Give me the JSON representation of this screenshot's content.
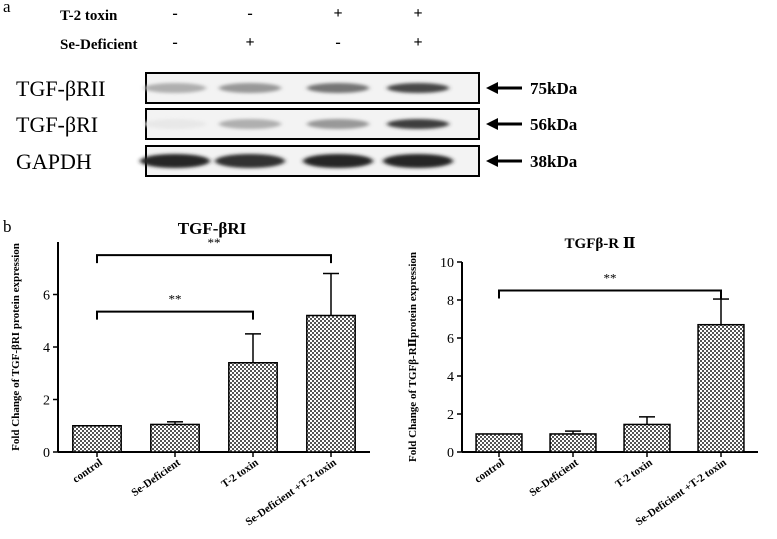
{
  "panel_a": {
    "letter": "a",
    "treatment_rows": [
      {
        "label": "T-2 toxin",
        "signs": [
          "-",
          "-",
          "+",
          "+"
        ]
      },
      {
        "label": "Se-Deficient",
        "signs": [
          "-",
          "+",
          "-",
          "+"
        ]
      }
    ],
    "blots": [
      {
        "name": "TGF-βRII",
        "size": "75kDa",
        "intensity": [
          0.35,
          0.45,
          0.6,
          0.8
        ]
      },
      {
        "name": "TGF-βRI",
        "size": "56kDa",
        "intensity": [
          0.1,
          0.35,
          0.45,
          0.85
        ]
      },
      {
        "name": "GAPDH",
        "size": "38kDa",
        "intensity": [
          0.95,
          0.9,
          0.95,
          0.95
        ]
      }
    ]
  },
  "panel_b": {
    "letter": "b"
  },
  "chart_data": [
    {
      "type": "bar",
      "title": "TGF-βRI",
      "ylabel": "Fold Change of TGF-βRI protein expression",
      "xlabel": "",
      "categories": [
        "control",
        "Se-Deficient",
        "T-2 toxin",
        "Se-Deficient +T-2 toxin"
      ],
      "values": [
        1.0,
        1.05,
        3.4,
        5.2
      ],
      "errors": [
        0.0,
        0.1,
        1.1,
        1.6
      ],
      "ylim": [
        0,
        8
      ],
      "yticks": [
        0,
        2,
        4,
        6
      ],
      "significance": [
        {
          "from": 0,
          "to": 2,
          "label": "**",
          "y": 5.35
        },
        {
          "from": 0,
          "to": 3,
          "label": "**",
          "y": 7.5
        }
      ]
    },
    {
      "type": "bar",
      "title": "TGFβ-R Ⅱ",
      "ylabel": "Fold Change of TGFβ-RⅡprotein expression",
      "xlabel": "",
      "categories": [
        "control",
        "Se-Deficient",
        "T-2 toxin",
        "Se-Deficient +T-2 toxin"
      ],
      "values": [
        0.95,
        0.95,
        1.45,
        6.7
      ],
      "errors": [
        0.0,
        0.15,
        0.4,
        1.35
      ],
      "ylim": [
        0,
        10
      ],
      "yticks": [
        0,
        2,
        4,
        6,
        8,
        10
      ],
      "significance": [
        {
          "from": 0,
          "to": 3,
          "label": "**",
          "y": 8.5
        }
      ]
    }
  ]
}
